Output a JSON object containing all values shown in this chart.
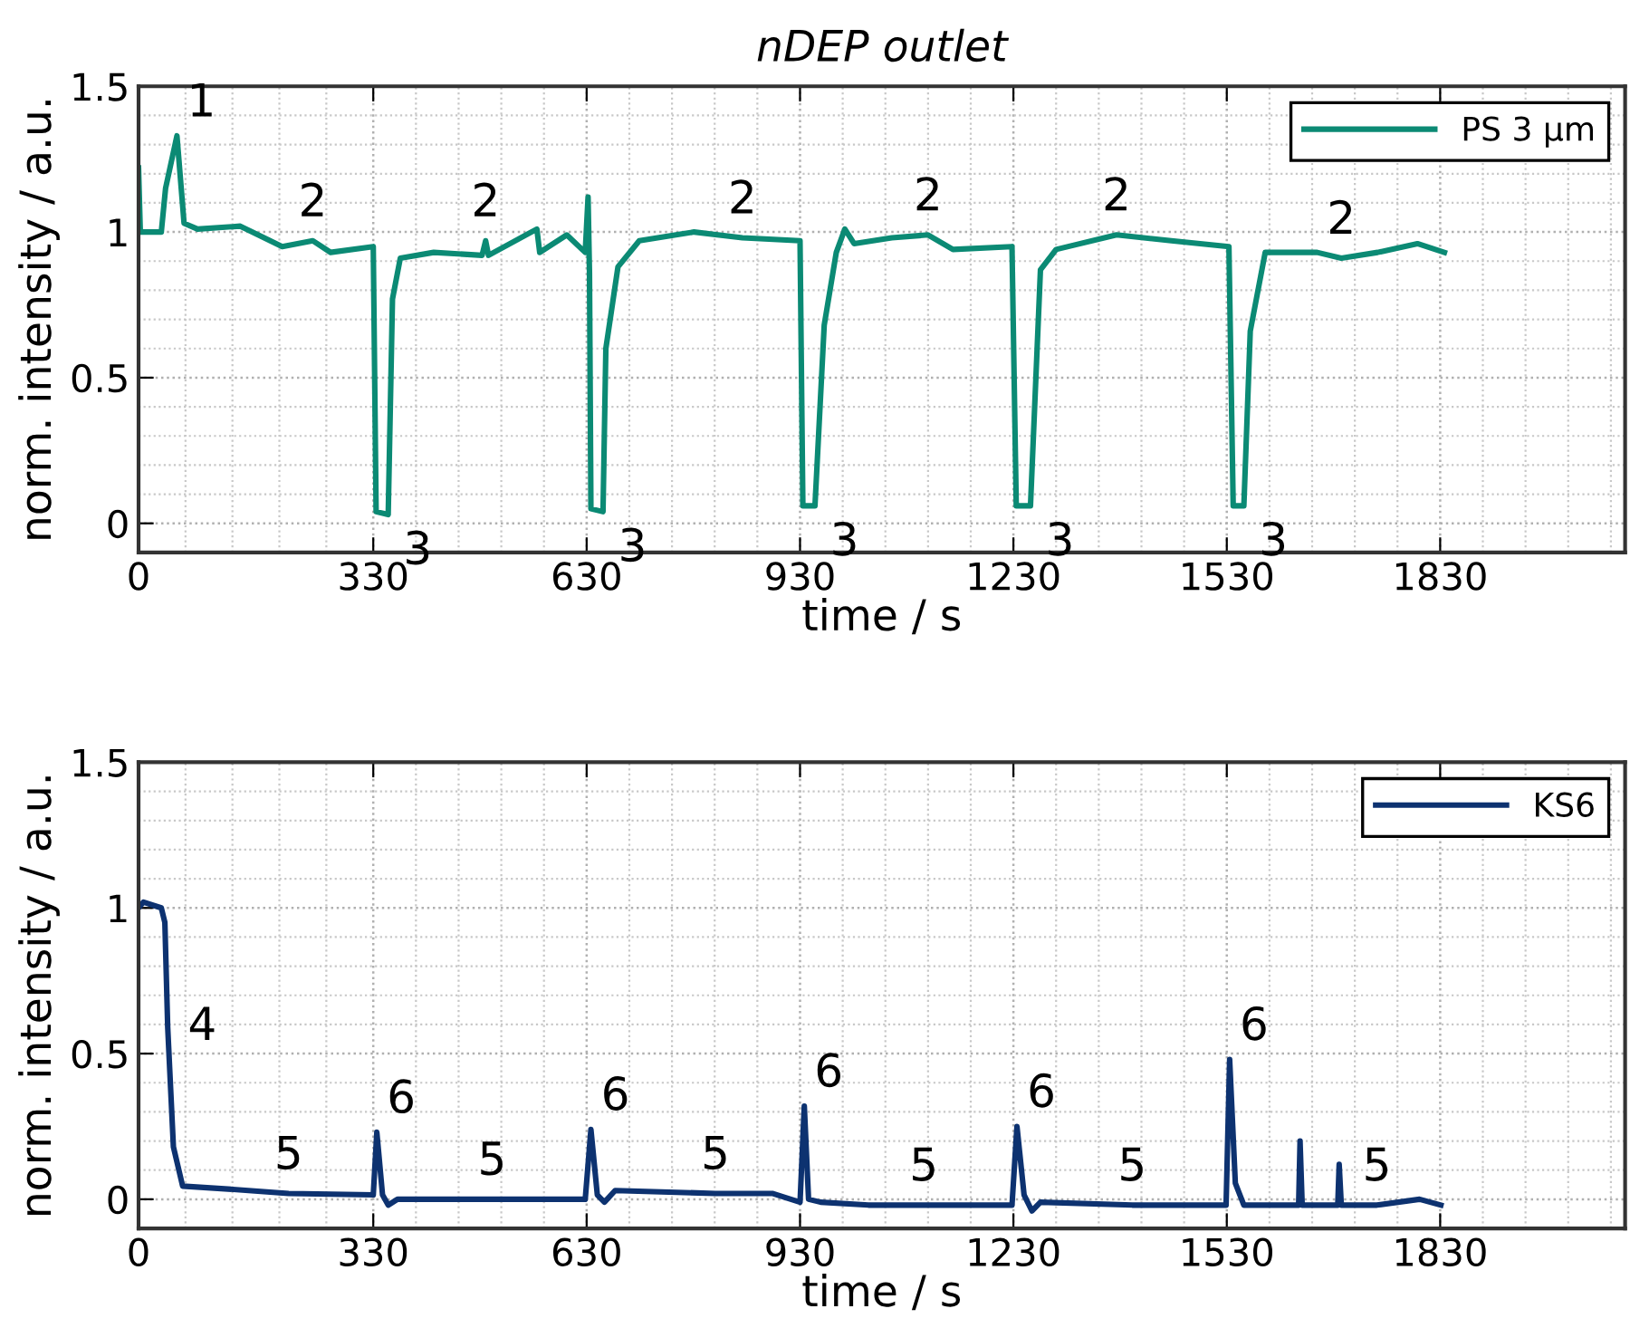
{
  "chart_data": [
    {
      "type": "line",
      "title": "nDEP outlet",
      "xlabel": "time / s",
      "ylabel": "norm. intensity / a.u.",
      "xlim": [
        0,
        2090
      ],
      "ylim": [
        -0.1,
        1.5
      ],
      "xticks": [
        0,
        330,
        630,
        930,
        1230,
        1530,
        1830
      ],
      "yticks": [
        0,
        0.5,
        1,
        1.5
      ],
      "grid": true,
      "legend": "top right",
      "series": [
        {
          "name": "PS 3 µm",
          "color": "#0b8a74",
          "x": [
            0,
            2.5,
            32,
            38,
            54,
            64,
            83,
            143,
            202,
            245,
            270,
            330,
            334,
            351,
            357,
            368,
            415,
            483,
            488,
            492,
            560,
            564,
            602,
            628,
            632,
            634,
            636,
            653,
            657,
            674,
            704,
            781,
            849,
            930,
            934,
            951,
            964,
            981,
            993,
            1006,
            1059,
            1110,
            1145,
            1228,
            1234,
            1254,
            1268,
            1290,
            1375,
            1452,
            1533,
            1539,
            1554,
            1563,
            1584,
            1657,
            1691,
            1742,
            1798,
            1836
          ],
          "values": [
            1.22,
            1.0,
            1.0,
            1.15,
            1.33,
            1.03,
            1.01,
            1.02,
            0.95,
            0.97,
            0.93,
            0.95,
            0.04,
            0.03,
            0.77,
            0.91,
            0.93,
            0.92,
            0.97,
            0.92,
            1.01,
            0.93,
            0.99,
            0.93,
            1.12,
            0.86,
            0.05,
            0.04,
            0.6,
            0.88,
            0.97,
            1.0,
            0.98,
            0.97,
            0.06,
            0.06,
            0.68,
            0.93,
            1.01,
            0.96,
            0.98,
            0.99,
            0.94,
            0.95,
            0.06,
            0.06,
            0.87,
            0.94,
            0.99,
            0.97,
            0.95,
            0.06,
            0.06,
            0.66,
            0.93,
            0.93,
            0.91,
            0.93,
            0.96,
            0.93
          ]
        }
      ],
      "annotations": [
        {
          "text": "1",
          "x": 54,
          "y": 1.33
        },
        {
          "text": "2",
          "x": 245,
          "y": 0.97
        },
        {
          "text": "2",
          "x": 488,
          "y": 0.97
        },
        {
          "text": "2",
          "x": 849,
          "y": 0.98
        },
        {
          "text": "2",
          "x": 1110,
          "y": 0.99
        },
        {
          "text": "2",
          "x": 1375,
          "y": 0.99
        },
        {
          "text": "2",
          "x": 1691,
          "y": 0.91
        },
        {
          "text": "3",
          "x": 351,
          "y": 0.03
        },
        {
          "text": "3",
          "x": 653,
          "y": 0.04
        },
        {
          "text": "3",
          "x": 951,
          "y": 0.06
        },
        {
          "text": "3",
          "x": 1254,
          "y": 0.06
        },
        {
          "text": "3",
          "x": 1554,
          "y": 0.06
        }
      ]
    },
    {
      "type": "line",
      "xlabel": "time / s",
      "ylabel": "norm. intensity / a.u.",
      "xlim": [
        0,
        2090
      ],
      "ylim": [
        -0.1,
        1.5
      ],
      "xticks": [
        0,
        330,
        630,
        930,
        1230,
        1530,
        1830
      ],
      "yticks": [
        0,
        0.5,
        1,
        1.5
      ],
      "grid": true,
      "legend": "top right",
      "series": [
        {
          "name": "KS6",
          "color": "#0d3270",
          "x": [
            0,
            7,
            32,
            37,
            41,
            49,
            62,
            126,
            211,
            330,
            335,
            343,
            351,
            364,
            497,
            628,
            636,
            645,
            655,
            670,
            811,
            891,
            930,
            936,
            942,
            959,
            1026,
            1104,
            1228,
            1235,
            1245,
            1256,
            1268,
            1397,
            1529,
            1534,
            1542,
            1554,
            1631,
            1633,
            1636,
            1686,
            1688,
            1691,
            1741,
            1801,
            1831
          ],
          "values": [
            1.0,
            1.02,
            1.0,
            0.95,
            0.59,
            0.18,
            0.045,
            0.035,
            0.02,
            0.015,
            0.23,
            0.015,
            -0.02,
            0.0,
            0.0,
            0.0,
            0.24,
            0.015,
            -0.01,
            0.03,
            0.02,
            0.02,
            -0.01,
            0.32,
            0.0,
            -0.01,
            -0.02,
            -0.02,
            -0.02,
            0.25,
            0.015,
            -0.04,
            -0.01,
            -0.02,
            -0.02,
            0.48,
            0.055,
            -0.02,
            -0.02,
            0.2,
            -0.02,
            -0.02,
            0.12,
            -0.02,
            -0.02,
            0.0,
            -0.02
          ]
        }
      ],
      "annotations": [
        {
          "text": "4",
          "x": 41,
          "y": 0.59
        },
        {
          "text": "5",
          "x": 211,
          "y": 0.02
        },
        {
          "text": "5",
          "x": 497,
          "y": 0.0
        },
        {
          "text": "5",
          "x": 811,
          "y": 0.02
        },
        {
          "text": "5",
          "x": 1104,
          "y": -0.02
        },
        {
          "text": "5",
          "x": 1397,
          "y": -0.02
        },
        {
          "text": "5",
          "x": 1741,
          "y": -0.02
        },
        {
          "text": "6",
          "x": 335,
          "y": 0.23
        },
        {
          "text": "6",
          "x": 636,
          "y": 0.24
        },
        {
          "text": "6",
          "x": 936,
          "y": 0.32
        },
        {
          "text": "6",
          "x": 1235,
          "y": 0.25
        },
        {
          "text": "6",
          "x": 1534,
          "y": 0.48
        }
      ]
    }
  ]
}
